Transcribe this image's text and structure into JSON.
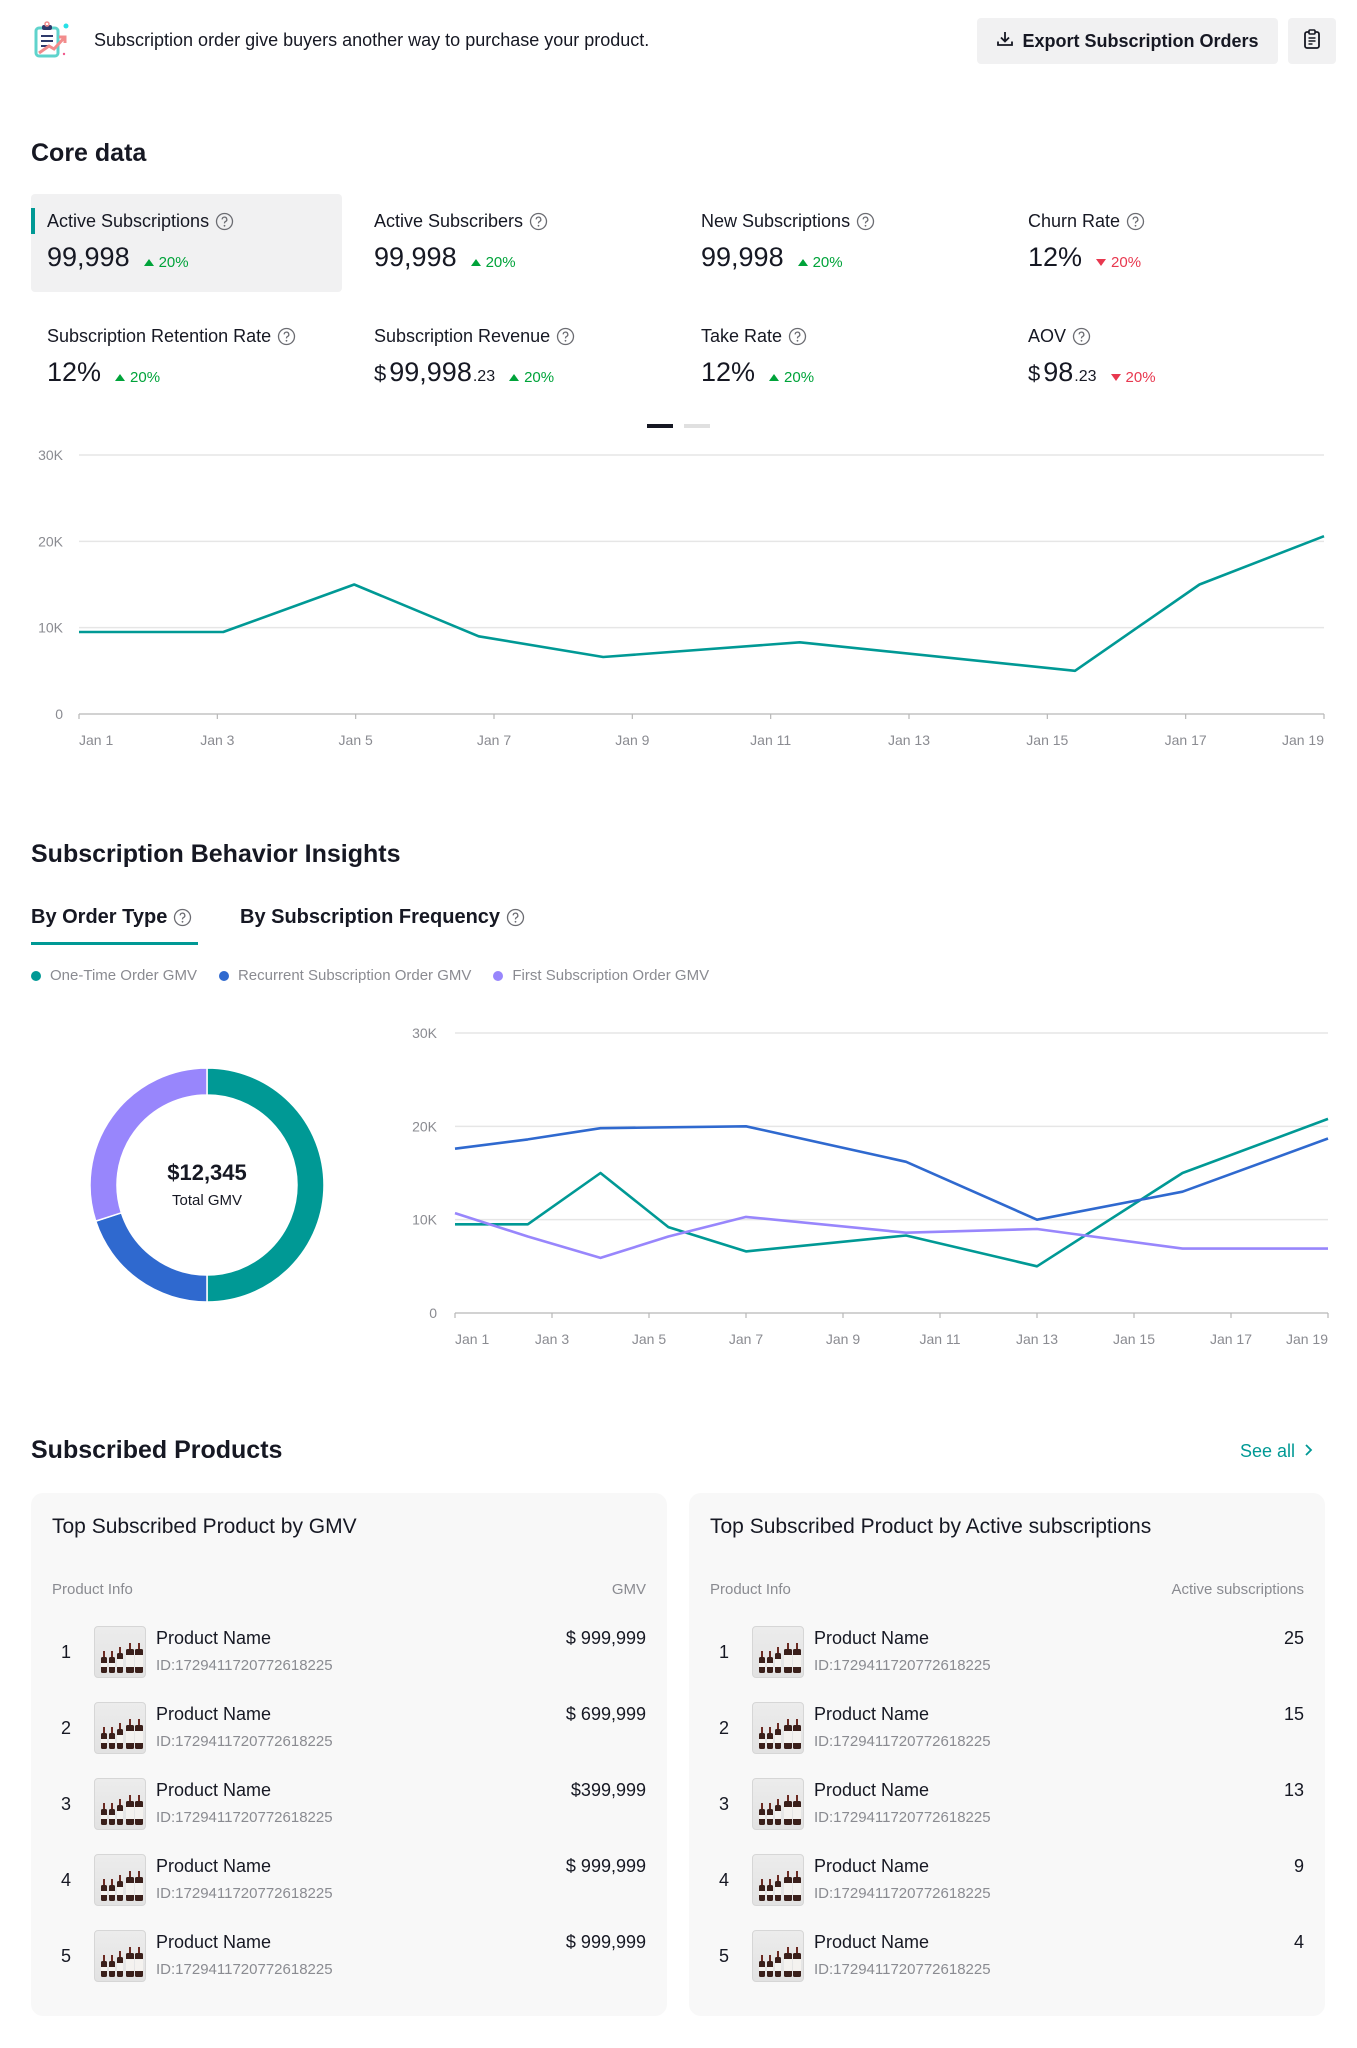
{
  "header": {
    "description": "Subscription order give buyers another way to purchase your product.",
    "export_label": "Export Subscription Orders",
    "icons": {
      "banner": "clipboard-chart-icon",
      "export": "download-icon",
      "notes": "notes-icon"
    }
  },
  "core_data": {
    "title": "Core data",
    "metrics": [
      {
        "label": "Active Subscriptions",
        "currency": "",
        "value": "99,998",
        "decimal": "",
        "change": "20%",
        "direction": "up",
        "active": true
      },
      {
        "label": "Active Subscribers",
        "currency": "",
        "value": "99,998",
        "decimal": "",
        "change": "20%",
        "direction": "up",
        "active": false
      },
      {
        "label": "New Subscriptions",
        "currency": "",
        "value": "99,998",
        "decimal": "",
        "change": "20%",
        "direction": "up",
        "active": false
      },
      {
        "label": "Churn Rate",
        "currency": "",
        "value": "12%",
        "decimal": "",
        "change": "20%",
        "direction": "down",
        "active": false
      },
      {
        "label": "Subscription Retention Rate",
        "currency": "",
        "value": "12%",
        "decimal": "",
        "change": "20%",
        "direction": "up",
        "active": false
      },
      {
        "label": "Subscription Revenue",
        "currency": "$",
        "value": "99,998",
        "decimal": ".23",
        "change": "20%",
        "direction": "up",
        "active": false
      },
      {
        "label": "Take Rate",
        "currency": "",
        "value": "12%",
        "decimal": "",
        "change": "20%",
        "direction": "up",
        "active": false
      },
      {
        "label": "AOV",
        "currency": "$",
        "value": "98",
        "decimal": ".23",
        "change": "20%",
        "direction": "down",
        "active": false
      }
    ],
    "pager": {
      "pages": 2,
      "current": 1
    }
  },
  "colors": {
    "teal": "#009995",
    "blue": "#2f69cf",
    "purple": "#9886fc",
    "up": "#00a33a",
    "down": "#e8384f"
  },
  "insights": {
    "title": "Subscription Behavior Insights",
    "tabs": [
      {
        "label": "By Order Type",
        "active": true
      },
      {
        "label": "By Subscription Frequency",
        "active": false
      }
    ],
    "legend": [
      {
        "label": "One-Time Order GMV",
        "color": "#009995"
      },
      {
        "label": "Recurrent Subscription Order GMV",
        "color": "#2f69cf"
      },
      {
        "label": "First Subscription Order GMV",
        "color": "#9886fc"
      }
    ],
    "donut": {
      "value": "$12,345",
      "label": "Total GMV"
    }
  },
  "chart_data": [
    {
      "type": "line",
      "title": "Active Subscriptions",
      "xlabel": "",
      "ylabel": "",
      "x_ticks": [
        "Jan 1",
        "Jan 3",
        "Jan 5",
        "Jan 7",
        "Jan 9",
        "Jan 11",
        "Jan 13",
        "Jan 15",
        "Jan 17",
        "Jan 19"
      ],
      "y_ticks": [
        "0",
        "10K",
        "20K",
        "30K"
      ],
      "ylim": [
        0,
        30000
      ],
      "xlim": [
        1,
        19
      ],
      "grid": true,
      "series": [
        {
          "name": "Active Subscriptions",
          "color": "#009995",
          "x": [
            1,
            3.2,
            5.2,
            7.1,
            9.0,
            12.0,
            16.2,
            18.1,
            20.0
          ],
          "values": [
            9500,
            9500,
            15000,
            9000,
            6600,
            8300,
            5000,
            15000,
            20600
          ]
        }
      ]
    },
    {
      "type": "line",
      "title": "GMV by Order Type",
      "xlabel": "",
      "ylabel": "",
      "x_ticks": [
        "Jan 1",
        "Jan 3",
        "Jan 5",
        "Jan 7",
        "Jan 9",
        "Jan 11",
        "Jan 13",
        "Jan 15",
        "Jan 17",
        "Jan 19"
      ],
      "y_ticks": [
        "0",
        "10K",
        "20K",
        "30K"
      ],
      "ylim": [
        0,
        30000
      ],
      "xlim": [
        1,
        19
      ],
      "grid": true,
      "legend": "top-left",
      "series": [
        {
          "name": "One-Time Order GMV",
          "color": "#009995",
          "x": [
            1,
            2.5,
            4.0,
            5.4,
            7.0,
            10.3,
            13.0,
            16.0,
            19.0
          ],
          "values": [
            9500,
            9500,
            15000,
            9200,
            6600,
            8300,
            5000,
            15000,
            20800
          ]
        },
        {
          "name": "Recurrent Subscription Order GMV",
          "color": "#2f69cf",
          "x": [
            1,
            2.5,
            4.0,
            7.0,
            10.3,
            13.0,
            16.0,
            19.0
          ],
          "values": [
            17600,
            18600,
            19800,
            20000,
            16200,
            10000,
            13000,
            18700
          ]
        },
        {
          "name": "First Subscription Order GMV",
          "color": "#9886fc",
          "x": [
            1,
            2.5,
            4.0,
            5.4,
            7.0,
            10.3,
            13.0,
            16.0,
            19.0
          ],
          "values": [
            10700,
            8200,
            5900,
            8200,
            10300,
            8600,
            9000,
            6900,
            6900
          ]
        }
      ]
    },
    {
      "type": "pie",
      "title": "Total GMV",
      "categories": [
        "One-Time Order GMV",
        "Recurrent Subscription Order GMV",
        "First Subscription Order GMV"
      ],
      "values": [
        50,
        20,
        30
      ],
      "colors": [
        "#009995",
        "#2f69cf",
        "#9886fc"
      ],
      "center_label": "$12,345"
    }
  ],
  "products": {
    "title": "Subscribed Products",
    "see_all_label": "See all",
    "cards": [
      {
        "title": "Top Subscribed Product by GMV",
        "col_info": "Product Info",
        "col_value": "GMV",
        "rows": [
          {
            "rank": "1",
            "name": "Product Name",
            "id": "ID:1729411720772618225",
            "value": "$ 999,999"
          },
          {
            "rank": "2",
            "name": "Product Name",
            "id": "ID:1729411720772618225",
            "value": "$ 699,999"
          },
          {
            "rank": "3",
            "name": "Product Name",
            "id": "ID:1729411720772618225",
            "value": "$399,999"
          },
          {
            "rank": "4",
            "name": "Product Name",
            "id": "ID:1729411720772618225",
            "value": "$ 999,999"
          },
          {
            "rank": "5",
            "name": "Product Name",
            "id": "ID:1729411720772618225",
            "value": "$ 999,999"
          }
        ]
      },
      {
        "title": "Top Subscribed Product by Active subscriptions",
        "col_info": "Product Info",
        "col_value": "Active subscriptions",
        "rows": [
          {
            "rank": "1",
            "name": "Product Name",
            "id": "ID:1729411720772618225",
            "value": "25"
          },
          {
            "rank": "2",
            "name": "Product Name",
            "id": "ID:1729411720772618225",
            "value": "15"
          },
          {
            "rank": "3",
            "name": "Product Name",
            "id": "ID:1729411720772618225",
            "value": "13"
          },
          {
            "rank": "4",
            "name": "Product Name",
            "id": "ID:1729411720772618225",
            "value": "9"
          },
          {
            "rank": "5",
            "name": "Product Name",
            "id": "ID:1729411720772618225",
            "value": "4"
          }
        ]
      }
    ]
  }
}
